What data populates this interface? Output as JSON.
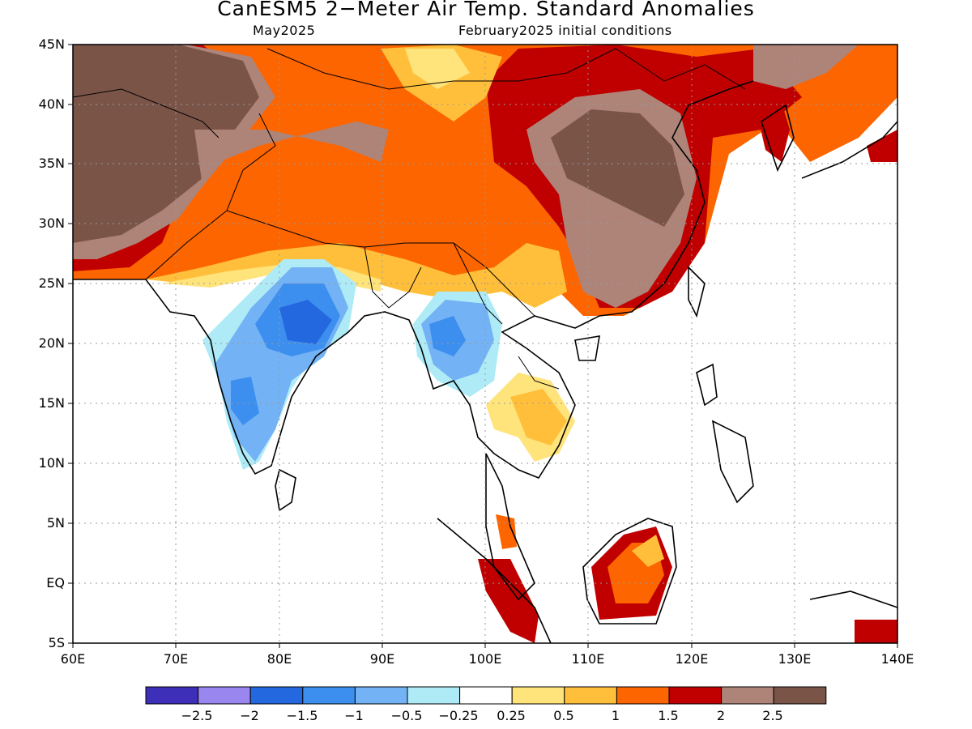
{
  "title": "CanESM5 2−Meter Air Temp. Standard Anomalies",
  "subtitle_left": "May2025",
  "subtitle_right": "February2025 initial conditions",
  "lat_labels": [
    "45N",
    "40N",
    "35N",
    "30N",
    "25N",
    "20N",
    "15N",
    "10N",
    "5N",
    "EQ",
    "5S"
  ],
  "lon_labels": [
    "60E",
    "70E",
    "80E",
    "90E",
    "100E",
    "110E",
    "120E",
    "130E",
    "140E"
  ],
  "colorbar": {
    "colors": [
      "#3e2fb8",
      "#9a86ef",
      "#2468e0",
      "#3d8fef",
      "#73b2f4",
      "#aeebf6",
      "#ffffff",
      "#ffe37b",
      "#ffbf3b",
      "#fc6500",
      "#c00000",
      "#ae8479",
      "#7b5448"
    ],
    "labels": [
      "−2.5",
      "−2",
      "−1.5",
      "−1",
      "−0.5",
      "−0.25",
      "0.25",
      "0.5",
      "1",
      "1.5",
      "2",
      "2.5"
    ]
  }
}
